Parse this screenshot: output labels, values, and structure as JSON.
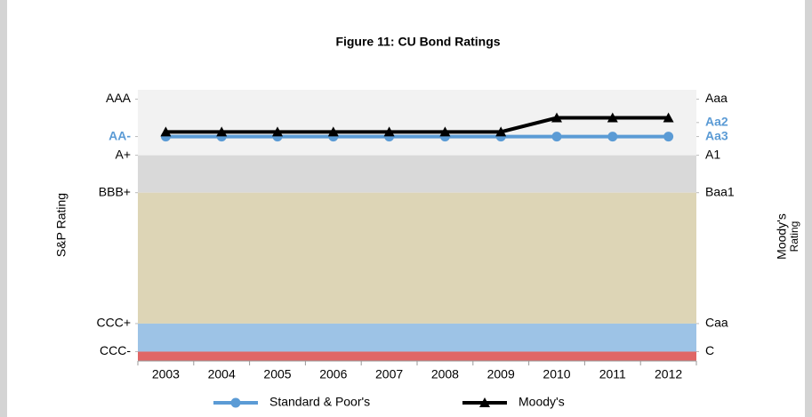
{
  "chart_data": {
    "type": "line",
    "title": "Figure 11:  CU Bond Ratings",
    "y_label": "S&P Rating",
    "y2_label": [
      "Moody's",
      "Rating"
    ],
    "categories": [
      "2003",
      "2004",
      "2005",
      "2006",
      "2007",
      "2008",
      "2009",
      "2010",
      "2011",
      "2012"
    ],
    "series": [
      {
        "name": "Standard & Poor's",
        "color": "#5b9bd5",
        "marker": "circle",
        "values": [
          24,
          24,
          24,
          24,
          24,
          24,
          24,
          24,
          24,
          24
        ]
      },
      {
        "name": "Moody's",
        "color": "#000000",
        "marker": "triangle",
        "axis": "y2",
        "values": [
          24.5,
          24.5,
          24.5,
          24.5,
          24.5,
          24.5,
          24.5,
          26,
          26,
          26
        ]
      }
    ],
    "bands": [
      {
        "from": 22,
        "to": 29,
        "color": "#f2f2f2"
      },
      {
        "from": 18,
        "to": 22,
        "color": "#d9d9d9"
      },
      {
        "from": 4,
        "to": 18,
        "color": "#ddd5b6"
      },
      {
        "from": 1,
        "to": 4,
        "color": "#9dc3e6"
      },
      {
        "from": 0,
        "to": 1,
        "color": "#e06666"
      }
    ],
    "ylim": [
      0,
      29
    ],
    "yticks": [
      {
        "value": 28,
        "label": "AAA"
      },
      {
        "value": 24,
        "label": "AA-",
        "highlight": true
      },
      {
        "value": 22,
        "label": "A+"
      },
      {
        "value": 18,
        "label": "BBB+"
      },
      {
        "value": 4,
        "label": "CCC+"
      },
      {
        "value": 1,
        "label": "CCC-"
      }
    ],
    "y2lim": [
      0,
      29
    ],
    "y2ticks": [
      {
        "value": 28,
        "label": "Aaa"
      },
      {
        "value": 25.5,
        "label": "Aa2",
        "highlight": true
      },
      {
        "value": 24,
        "label": "Aa3",
        "highlight": true
      },
      {
        "value": 22,
        "label": "A1"
      },
      {
        "value": 18,
        "label": "Baa1"
      },
      {
        "value": 4,
        "label": "Caa"
      },
      {
        "value": 1,
        "label": "C"
      }
    ],
    "highlight_color": "#5b9bd5",
    "legend": "bottom"
  }
}
